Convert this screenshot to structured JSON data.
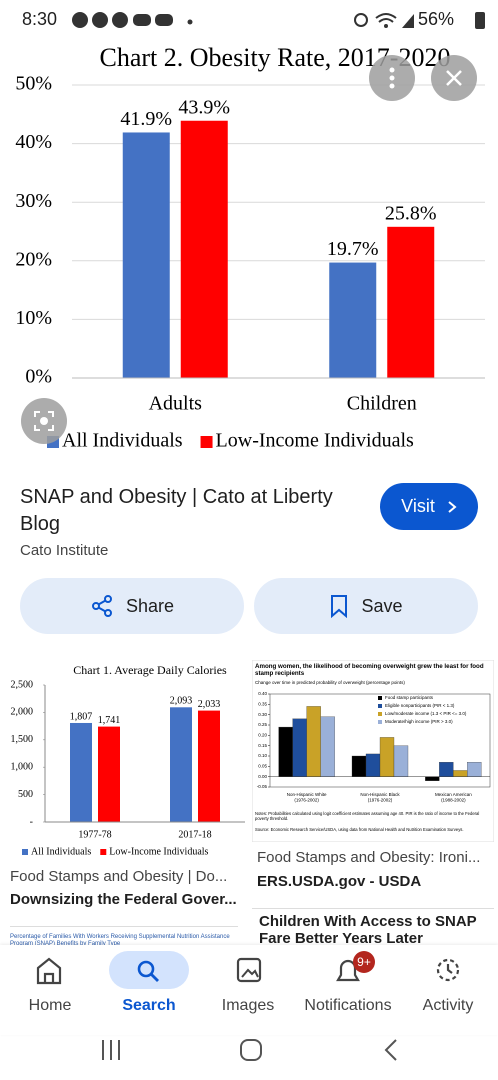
{
  "status_bar": {
    "time": "8:30",
    "battery": "56%"
  },
  "chart_data": [
    {
      "type": "bar",
      "title": "Chart 2. Obesity Rate, 2017-2020",
      "categories": [
        "Adults",
        "Children"
      ],
      "series": [
        {
          "name": "All Individuals",
          "color": "#4472c4",
          "values": [
            41.9,
            19.7
          ],
          "value_labels": [
            "41.9%",
            "19.7%"
          ]
        },
        {
          "name": "Low-Income Individuals",
          "color": "#ff0000",
          "values": [
            43.9,
            25.8
          ],
          "value_labels": [
            "43.9%",
            "25.8%"
          ]
        }
      ],
      "ylim": [
        0,
        50
      ],
      "yticks": [
        {
          "value": 0,
          "label": "0%"
        },
        {
          "value": 10,
          "label": "10%"
        },
        {
          "value": 20,
          "label": "20%"
        },
        {
          "value": 30,
          "label": "30%"
        },
        {
          "value": 40,
          "label": "40%"
        },
        {
          "value": 50,
          "label": "50%"
        }
      ],
      "grid": true,
      "legend": "bottom"
    },
    {
      "type": "bar",
      "title": "Chart 1. Average Daily Calories",
      "categories": [
        "1977-78",
        "2017-18"
      ],
      "series": [
        {
          "name": "All Individuals",
          "color": "#4472c4",
          "values": [
            1807,
            2093
          ],
          "value_labels": [
            "1,807",
            "2,093"
          ]
        },
        {
          "name": "Low-Income Individuals",
          "color": "#ff0000",
          "values": [
            1741,
            2033
          ],
          "value_labels": [
            "1,741",
            "2,033"
          ]
        }
      ],
      "ylim": [
        0,
        2500
      ],
      "yticks": [
        {
          "value": 0,
          "label": "-"
        },
        500,
        {
          "value": 1000,
          "label": "1,000"
        },
        {
          "value": 1500,
          "label": "1,500"
        },
        {
          "value": 2000,
          "label": "2,000"
        },
        {
          "value": 2500,
          "label": "2,500"
        }
      ],
      "grid": false,
      "legend": "bottom"
    },
    {
      "type": "bar",
      "title": "Among women, the likelihood of becoming overweight grew the least for food stamp recipients",
      "subtitle": "Change over time in predicted probability of overweight (percentage points)",
      "categories": [
        "Non-Hispanic White (1976-2002)",
        "Non-Hispanic Black (1976-2002)",
        "Mexican American (1988-2002)"
      ],
      "series": [
        {
          "name": "Food stamp participants",
          "color": "#000000",
          "values": [
            0.24,
            0.1,
            -0.02
          ]
        },
        {
          "name": "Eligible nonparticipants (PIR < 1.3)",
          "color": "#1f4e9c",
          "values": [
            0.28,
            0.11,
            0.07
          ]
        },
        {
          "name": "Low/moderate income (1.3 < PIR <= 3.0)",
          "color": "#c9a227",
          "values": [
            0.34,
            0.19,
            0.03
          ]
        },
        {
          "name": "Moderate/high income (PIR > 3.0)",
          "color": "#9ab0d8",
          "values": [
            0.29,
            0.15,
            0.07
          ]
        }
      ],
      "ylim": [
        -0.05,
        0.4
      ],
      "yticks": [
        {
          "value": -0.05,
          "label": "-0.05"
        },
        {
          "value": 0,
          "label": "0.00"
        },
        0.05,
        {
          "value": 0.1,
          "label": "0.10"
        },
        0.15,
        {
          "value": 0.2,
          "label": "0.20"
        },
        0.25,
        {
          "value": 0.3,
          "label": "0.30"
        },
        0.35,
        {
          "value": 0.4,
          "label": "0.40"
        }
      ],
      "grid": false,
      "legend": "top-right",
      "notes": "Notes: Probabilities calculated using logit coefficient estimates assuming age 40. PIR is the ratio of income to the Federal poverty threshold.",
      "source": "Source: Economic Research Service/USDA, using data from National Health and Nutrition Examination Surveys."
    }
  ],
  "result": {
    "title": "SNAP and Obesity | Cato at Liberty Blog",
    "source": "Cato Institute",
    "visit": "Visit"
  },
  "actions": {
    "share": "Share",
    "save": "Save"
  },
  "related": [
    {
      "title": "Food Stamps and Obesity | Do...",
      "source": "Downsizing the Federal Gover..."
    },
    {
      "title": "Food Stamps and Obesity: Ironi...",
      "source": "ERS.USDA.gov - USDA"
    },
    {
      "title": "Children With Access to SNAP Fare Better Years Later"
    }
  ],
  "partial_thumbnail": {
    "title": "Percentage of Families With Workers Receiving Supplemental Nutrition Assistance Program (SNAP) Benefits by Family Type"
  },
  "nav": {
    "items": [
      "Home",
      "Search",
      "Images",
      "Notifications",
      "Activity"
    ],
    "badge": "9+"
  }
}
